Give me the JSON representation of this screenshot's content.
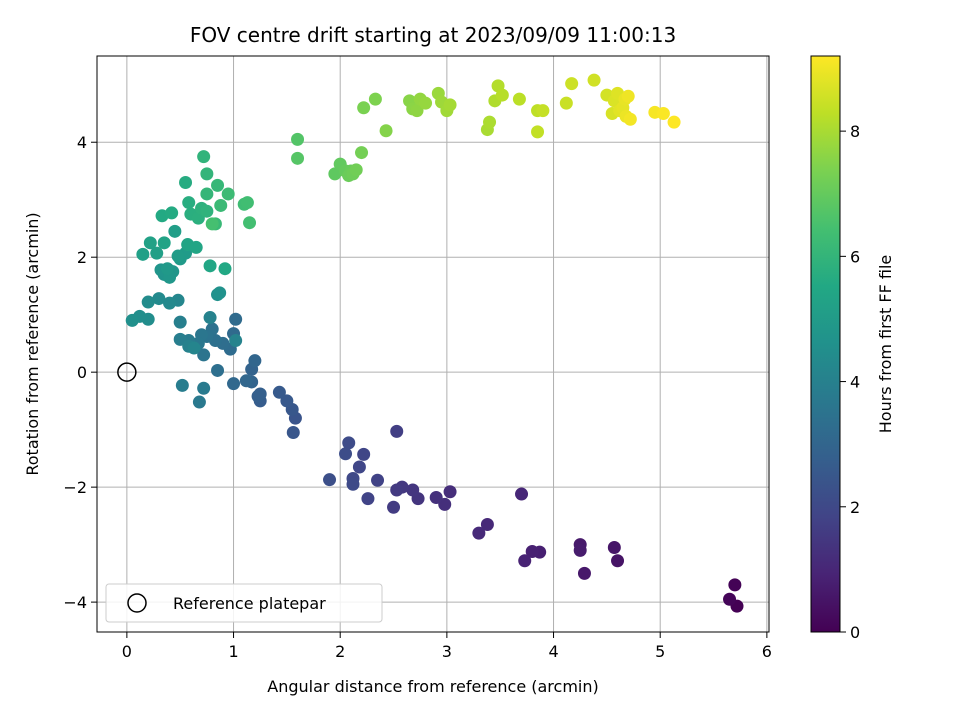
{
  "chart_data": {
    "type": "scatter",
    "title": "FOV centre drift starting at 2023/09/09 11:00:13",
    "xlabel": "Angular distance from reference (arcmin)",
    "ylabel": "Rotation from reference (arcmin)",
    "xlim": [
      -0.28,
      6.02
    ],
    "ylim": [
      -4.52,
      5.5
    ],
    "xticks": [
      0,
      1,
      2,
      3,
      4,
      5,
      6
    ],
    "yticks": [
      -4,
      -2,
      0,
      2,
      4
    ],
    "grid": true,
    "legend": {
      "position": "lower-left",
      "entries": [
        "Reference platepar"
      ]
    },
    "reference_point": {
      "x": 0,
      "y": 0,
      "marker": "open-circle",
      "label": "Reference platepar"
    },
    "colorbar": {
      "label": "Hours from first FF file",
      "colormap": "viridis",
      "range": [
        0,
        9.2
      ],
      "ticks": [
        0,
        2,
        4,
        6,
        8
      ]
    },
    "points": [
      {
        "x": 5.72,
        "y": -4.07,
        "c": 0.0
      },
      {
        "x": 5.7,
        "y": -3.7,
        "c": 0.05
      },
      {
        "x": 5.65,
        "y": -3.95,
        "c": 0.1
      },
      {
        "x": 4.6,
        "y": -3.28,
        "c": 0.5
      },
      {
        "x": 4.57,
        "y": -3.05,
        "c": 0.55
      },
      {
        "x": 4.29,
        "y": -3.5,
        "c": 0.6
      },
      {
        "x": 4.25,
        "y": -3.0,
        "c": 0.65
      },
      {
        "x": 4.25,
        "y": -3.1,
        "c": 0.7
      },
      {
        "x": 3.87,
        "y": -3.13,
        "c": 0.8
      },
      {
        "x": 3.8,
        "y": -3.12,
        "c": 0.85
      },
      {
        "x": 3.73,
        "y": -3.28,
        "c": 0.9
      },
      {
        "x": 3.7,
        "y": -2.12,
        "c": 1.0
      },
      {
        "x": 3.38,
        "y": -2.65,
        "c": 1.05
      },
      {
        "x": 3.3,
        "y": -2.8,
        "c": 1.1
      },
      {
        "x": 3.03,
        "y": -2.08,
        "c": 1.2
      },
      {
        "x": 2.98,
        "y": -2.3,
        "c": 1.25
      },
      {
        "x": 2.9,
        "y": -2.18,
        "c": 1.3
      },
      {
        "x": 2.73,
        "y": -2.2,
        "c": 1.4
      },
      {
        "x": 2.68,
        "y": -2.05,
        "c": 1.45
      },
      {
        "x": 2.58,
        "y": -2.0,
        "c": 1.5
      },
      {
        "x": 2.53,
        "y": -2.05,
        "c": 1.55
      },
      {
        "x": 2.5,
        "y": -2.35,
        "c": 1.6
      },
      {
        "x": 2.53,
        "y": -1.03,
        "c": 1.7
      },
      {
        "x": 2.35,
        "y": -1.88,
        "c": 1.8
      },
      {
        "x": 2.26,
        "y": -2.2,
        "c": 1.85
      },
      {
        "x": 2.22,
        "y": -1.43,
        "c": 1.9
      },
      {
        "x": 2.18,
        "y": -1.65,
        "c": 1.95
      },
      {
        "x": 2.12,
        "y": -1.85,
        "c": 2.0
      },
      {
        "x": 2.12,
        "y": -1.95,
        "c": 2.05
      },
      {
        "x": 2.08,
        "y": -1.23,
        "c": 2.1
      },
      {
        "x": 2.05,
        "y": -1.42,
        "c": 2.15
      },
      {
        "x": 1.9,
        "y": -1.87,
        "c": 2.2
      },
      {
        "x": 1.58,
        "y": -0.8,
        "c": 2.4
      },
      {
        "x": 1.56,
        "y": -1.05,
        "c": 2.45
      },
      {
        "x": 1.55,
        "y": -0.65,
        "c": 2.5
      },
      {
        "x": 1.5,
        "y": -0.5,
        "c": 2.55
      },
      {
        "x": 1.43,
        "y": -0.35,
        "c": 2.6
      },
      {
        "x": 1.25,
        "y": -0.5,
        "c": 2.7
      },
      {
        "x": 1.23,
        "y": -0.42,
        "c": 2.75
      },
      {
        "x": 1.25,
        "y": -0.38,
        "c": 2.8
      },
      {
        "x": 1.17,
        "y": 0.05,
        "c": 2.9
      },
      {
        "x": 1.17,
        "y": -0.17,
        "c": 2.95
      },
      {
        "x": 1.2,
        "y": 0.2,
        "c": 3.0
      },
      {
        "x": 1.12,
        "y": -0.15,
        "c": 3.05
      },
      {
        "x": 1.0,
        "y": -0.2,
        "c": 3.1
      },
      {
        "x": 1.0,
        "y": 0.67,
        "c": 3.15
      },
      {
        "x": 1.02,
        "y": 0.92,
        "c": 3.2
      },
      {
        "x": 0.97,
        "y": 0.4,
        "c": 3.25
      },
      {
        "x": 0.9,
        "y": 0.5,
        "c": 3.3
      },
      {
        "x": 0.85,
        "y": 0.03,
        "c": 3.35
      },
      {
        "x": 0.83,
        "y": 0.55,
        "c": 3.4
      },
      {
        "x": 0.8,
        "y": 0.75,
        "c": 3.45
      },
      {
        "x": 0.75,
        "y": 0.62,
        "c": 3.5
      },
      {
        "x": 0.72,
        "y": 0.3,
        "c": 3.55
      },
      {
        "x": 0.7,
        "y": 0.65,
        "c": 3.6
      },
      {
        "x": 0.67,
        "y": 0.5,
        "c": 3.65
      },
      {
        "x": 0.68,
        "y": -0.52,
        "c": 3.7
      },
      {
        "x": 0.72,
        "y": -0.28,
        "c": 3.75
      },
      {
        "x": 0.58,
        "y": 0.55,
        "c": 3.8
      },
      {
        "x": 0.52,
        "y": -0.23,
        "c": 3.85
      },
      {
        "x": 0.5,
        "y": 0.57,
        "c": 3.9
      },
      {
        "x": 0.5,
        "y": 0.87,
        "c": 3.95
      },
      {
        "x": 0.58,
        "y": 0.45,
        "c": 4.0
      },
      {
        "x": 0.78,
        "y": 0.95,
        "c": 4.05
      },
      {
        "x": 1.02,
        "y": 0.55,
        "c": 4.1
      },
      {
        "x": 0.63,
        "y": 0.42,
        "c": 4.15
      },
      {
        "x": 0.48,
        "y": 1.25,
        "c": 4.2
      },
      {
        "x": 0.4,
        "y": 1.2,
        "c": 4.3
      },
      {
        "x": 0.3,
        "y": 1.28,
        "c": 4.35
      },
      {
        "x": 0.2,
        "y": 1.22,
        "c": 4.4
      },
      {
        "x": 0.2,
        "y": 0.92,
        "c": 4.45
      },
      {
        "x": 0.12,
        "y": 0.97,
        "c": 4.5
      },
      {
        "x": 0.05,
        "y": 0.9,
        "c": 4.55
      },
      {
        "x": 0.85,
        "y": 1.35,
        "c": 4.6
      },
      {
        "x": 0.87,
        "y": 1.38,
        "c": 4.65
      },
      {
        "x": 0.35,
        "y": 1.7,
        "c": 4.7
      },
      {
        "x": 0.32,
        "y": 1.78,
        "c": 4.75
      },
      {
        "x": 0.43,
        "y": 1.75,
        "c": 4.8
      },
      {
        "x": 0.4,
        "y": 1.65,
        "c": 4.85
      },
      {
        "x": 0.38,
        "y": 1.8,
        "c": 4.9
      },
      {
        "x": 0.5,
        "y": 1.97,
        "c": 4.95
      },
      {
        "x": 0.55,
        "y": 2.07,
        "c": 5.0
      },
      {
        "x": 0.48,
        "y": 2.02,
        "c": 5.05
      },
      {
        "x": 0.45,
        "y": 2.45,
        "c": 5.1
      },
      {
        "x": 0.28,
        "y": 2.07,
        "c": 5.15
      },
      {
        "x": 0.15,
        "y": 2.05,
        "c": 5.2
      },
      {
        "x": 0.22,
        "y": 2.25,
        "c": 5.25
      },
      {
        "x": 0.35,
        "y": 2.25,
        "c": 5.3
      },
      {
        "x": 0.57,
        "y": 2.22,
        "c": 5.35
      },
      {
        "x": 0.65,
        "y": 2.17,
        "c": 5.4
      },
      {
        "x": 0.78,
        "y": 1.85,
        "c": 5.45
      },
      {
        "x": 0.92,
        "y": 1.8,
        "c": 5.5
      },
      {
        "x": 0.33,
        "y": 2.72,
        "c": 5.55
      },
      {
        "x": 0.42,
        "y": 2.77,
        "c": 5.6
      },
      {
        "x": 0.55,
        "y": 3.3,
        "c": 5.65
      },
      {
        "x": 0.58,
        "y": 2.95,
        "c": 5.7
      },
      {
        "x": 0.6,
        "y": 2.75,
        "c": 5.75
      },
      {
        "x": 0.67,
        "y": 2.68,
        "c": 5.8
      },
      {
        "x": 0.7,
        "y": 2.85,
        "c": 5.85
      },
      {
        "x": 0.75,
        "y": 2.8,
        "c": 5.9
      },
      {
        "x": 0.72,
        "y": 3.75,
        "c": 5.95
      },
      {
        "x": 0.75,
        "y": 3.45,
        "c": 6.0
      },
      {
        "x": 0.75,
        "y": 3.1,
        "c": 6.05
      },
      {
        "x": 0.85,
        "y": 3.25,
        "c": 6.1
      },
      {
        "x": 0.83,
        "y": 2.58,
        "c": 6.15
      },
      {
        "x": 0.88,
        "y": 2.9,
        "c": 6.2
      },
      {
        "x": 0.95,
        "y": 3.1,
        "c": 6.25
      },
      {
        "x": 1.1,
        "y": 2.92,
        "c": 6.3
      },
      {
        "x": 1.13,
        "y": 2.95,
        "c": 6.35
      },
      {
        "x": 1.15,
        "y": 2.6,
        "c": 6.4
      },
      {
        "x": 0.8,
        "y": 2.58,
        "c": 6.45
      },
      {
        "x": 1.6,
        "y": 4.05,
        "c": 6.7
      },
      {
        "x": 1.6,
        "y": 3.72,
        "c": 6.75
      },
      {
        "x": 1.95,
        "y": 3.45,
        "c": 6.9
      },
      {
        "x": 2.0,
        "y": 3.62,
        "c": 6.95
      },
      {
        "x": 2.05,
        "y": 3.5,
        "c": 7.0
      },
      {
        "x": 2.1,
        "y": 3.5,
        "c": 7.05
      },
      {
        "x": 2.08,
        "y": 3.42,
        "c": 7.1
      },
      {
        "x": 2.12,
        "y": 3.45,
        "c": 7.15
      },
      {
        "x": 2.15,
        "y": 3.52,
        "c": 7.2
      },
      {
        "x": 2.2,
        "y": 3.82,
        "c": 7.25
      },
      {
        "x": 2.22,
        "y": 4.6,
        "c": 7.35
      },
      {
        "x": 2.33,
        "y": 4.75,
        "c": 7.4
      },
      {
        "x": 2.43,
        "y": 4.2,
        "c": 7.5
      },
      {
        "x": 2.65,
        "y": 4.72,
        "c": 7.55
      },
      {
        "x": 2.68,
        "y": 4.58,
        "c": 7.6
      },
      {
        "x": 2.72,
        "y": 4.55,
        "c": 7.65
      },
      {
        "x": 2.75,
        "y": 4.75,
        "c": 7.7
      },
      {
        "x": 2.8,
        "y": 4.68,
        "c": 7.75
      },
      {
        "x": 2.92,
        "y": 4.85,
        "c": 7.8
      },
      {
        "x": 2.95,
        "y": 4.7,
        "c": 7.85
      },
      {
        "x": 3.0,
        "y": 4.55,
        "c": 7.9
      },
      {
        "x": 3.03,
        "y": 4.65,
        "c": 7.95
      },
      {
        "x": 3.38,
        "y": 4.22,
        "c": 8.0
      },
      {
        "x": 3.4,
        "y": 4.35,
        "c": 8.05
      },
      {
        "x": 3.45,
        "y": 4.72,
        "c": 8.1
      },
      {
        "x": 3.48,
        "y": 4.98,
        "c": 8.15
      },
      {
        "x": 3.52,
        "y": 4.82,
        "c": 8.2
      },
      {
        "x": 3.68,
        "y": 4.75,
        "c": 8.25
      },
      {
        "x": 3.85,
        "y": 4.55,
        "c": 8.3
      },
      {
        "x": 3.85,
        "y": 4.18,
        "c": 8.35
      },
      {
        "x": 3.9,
        "y": 4.55,
        "c": 8.4
      },
      {
        "x": 4.12,
        "y": 4.68,
        "c": 8.45
      },
      {
        "x": 4.17,
        "y": 5.02,
        "c": 8.5
      },
      {
        "x": 4.38,
        "y": 5.08,
        "c": 8.55
      },
      {
        "x": 4.5,
        "y": 4.82,
        "c": 8.6
      },
      {
        "x": 4.55,
        "y": 4.5,
        "c": 8.65
      },
      {
        "x": 4.57,
        "y": 4.72,
        "c": 8.7
      },
      {
        "x": 4.6,
        "y": 4.85,
        "c": 8.75
      },
      {
        "x": 4.62,
        "y": 4.55,
        "c": 8.8
      },
      {
        "x": 4.65,
        "y": 4.6,
        "c": 8.85
      },
      {
        "x": 4.67,
        "y": 4.75,
        "c": 8.9
      },
      {
        "x": 4.68,
        "y": 4.45,
        "c": 8.95
      },
      {
        "x": 4.7,
        "y": 4.8,
        "c": 9.0
      },
      {
        "x": 4.72,
        "y": 4.4,
        "c": 9.05
      },
      {
        "x": 4.95,
        "y": 4.52,
        "c": 9.1
      },
      {
        "x": 5.03,
        "y": 4.5,
        "c": 9.15
      },
      {
        "x": 5.13,
        "y": 4.35,
        "c": 9.2
      }
    ]
  }
}
